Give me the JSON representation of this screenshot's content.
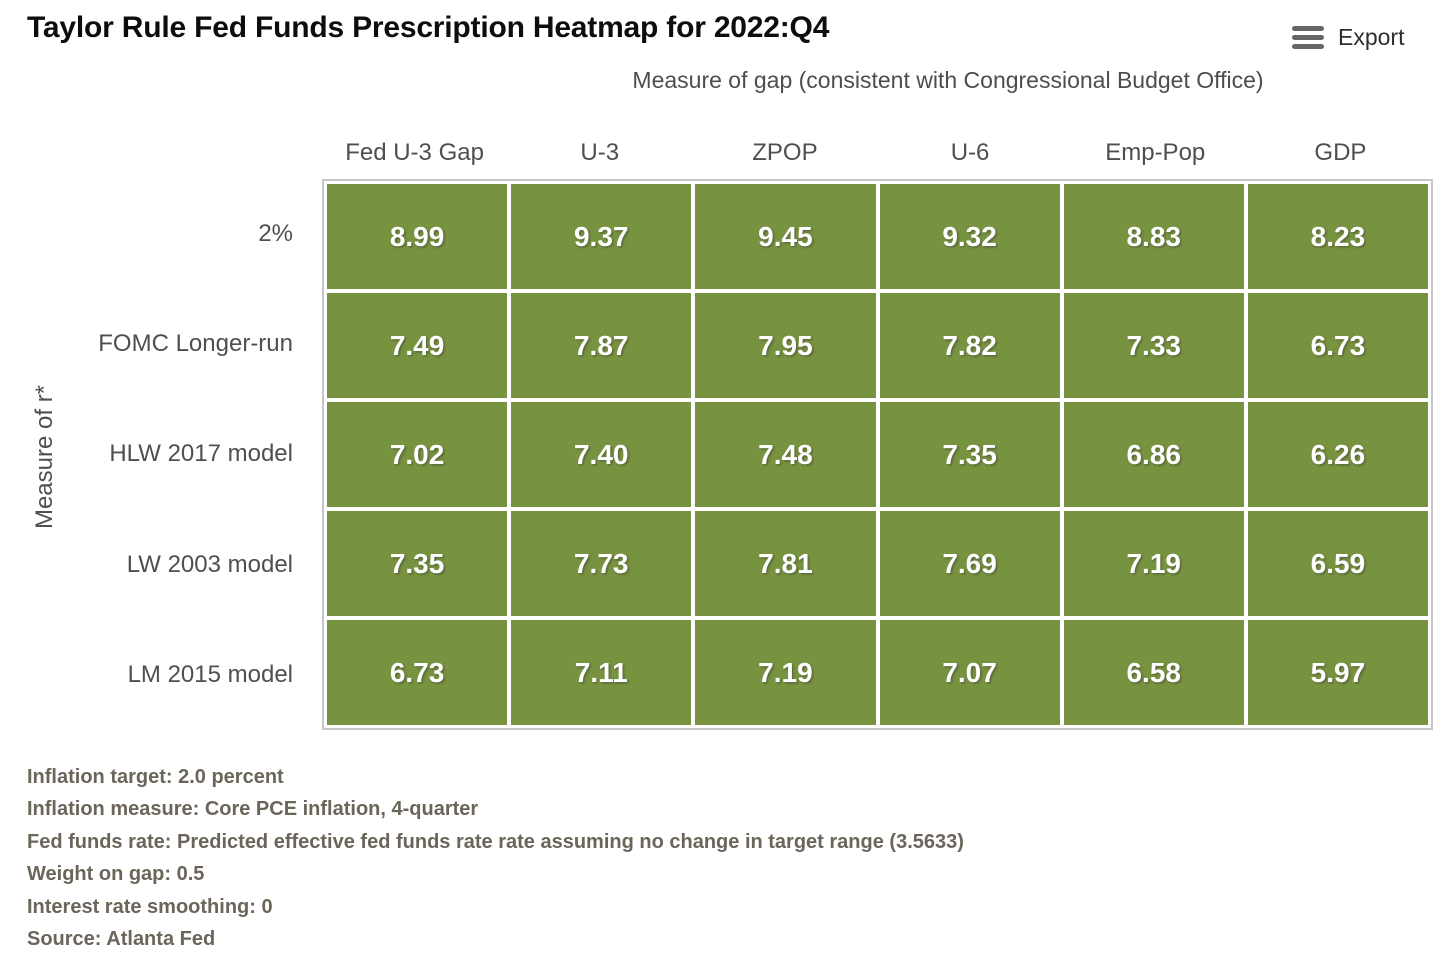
{
  "header": {
    "title": "Taylor Rule Fed Funds Prescription Heatmap for 2022:Q4",
    "export_label": "Export"
  },
  "chart_data": {
    "type": "heatmap",
    "title": "Taylor Rule Fed Funds Prescription Heatmap for 2022:Q4",
    "x_axis_label": "Measure of gap (consistent with Congressional Budget Office)",
    "y_axis_label": "Measure of r*",
    "columns": [
      "Fed U-3 Gap",
      "U-3",
      "ZPOP",
      "U-6",
      "Emp-Pop",
      "GDP"
    ],
    "rows": [
      "2%",
      "FOMC Longer-run",
      "HLW 2017 model",
      "LW 2003 model",
      "LM 2015 model"
    ],
    "values": [
      [
        8.99,
        9.37,
        9.45,
        9.32,
        8.83,
        8.23
      ],
      [
        7.49,
        7.87,
        7.95,
        7.82,
        7.33,
        6.73
      ],
      [
        7.02,
        7.4,
        7.48,
        7.35,
        6.86,
        6.26
      ],
      [
        7.35,
        7.73,
        7.81,
        7.69,
        7.19,
        6.59
      ],
      [
        6.73,
        7.11,
        7.19,
        7.07,
        6.58,
        5.97
      ]
    ],
    "value_decimals": 2,
    "cell_color": "#789340",
    "value_text_color": "#ffffff",
    "legend": "none",
    "grid_line_color": "#ffffff"
  },
  "footnotes": [
    "Inflation target: 2.0 percent",
    "Inflation measure: Core PCE inflation, 4-quarter",
    "Fed funds rate: Predicted effective fed funds rate rate assuming no change in target range (3.5633)",
    "Weight on gap: 0.5",
    "Interest rate smoothing: 0",
    "Source: Atlanta Fed"
  ]
}
